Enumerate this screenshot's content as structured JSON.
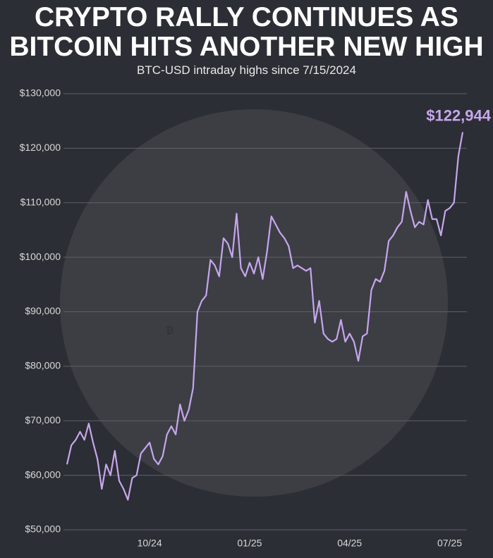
{
  "chart_data": {
    "type": "line",
    "title": "CRYPTO RALLY CONTINUES AS BITCOIN HITS ANOTHER NEW HIGH",
    "subtitle": "BTC-USD intraday highs since 7/15/2024",
    "categories": [
      null,
      null,
      null,
      null,
      null,
      null,
      null,
      null,
      null,
      null,
      null,
      null,
      null,
      null,
      null,
      null,
      null,
      null,
      null,
      "10/24",
      null,
      null,
      null,
      null,
      null,
      null,
      null,
      null,
      null,
      null,
      null,
      null,
      null,
      null,
      null,
      null,
      null,
      null,
      null,
      null,
      null,
      null,
      "01/25",
      null,
      null,
      null,
      null,
      null,
      null,
      null,
      null,
      null,
      null,
      null,
      null,
      null,
      null,
      null,
      null,
      null,
      null,
      null,
      null,
      null,
      null,
      "04/25",
      null,
      null,
      null,
      null,
      null,
      null,
      null,
      null,
      null,
      null,
      null,
      null,
      null,
      null,
      null,
      null,
      null,
      null,
      null,
      null,
      null,
      null,
      "07/25",
      null,
      null,
      null
    ],
    "series": [
      {
        "name": "BTC-USD",
        "color": "#c7a6ee",
        "values": [
          62000,
          65500,
          66500,
          68000,
          66500,
          69500,
          66000,
          63000,
          57500,
          62000,
          60000,
          64500,
          59000,
          57500,
          55500,
          59500,
          60000,
          64000,
          65000,
          66000,
          63000,
          62000,
          63500,
          67500,
          69000,
          67500,
          73000,
          70000,
          72000,
          76000,
          90000,
          92000,
          93000,
          99500,
          98500,
          96500,
          103500,
          102500,
          100000,
          108000,
          98000,
          96500,
          99000,
          97000,
          100000,
          96000,
          101000,
          107500,
          106000,
          104500,
          103500,
          102000,
          98000,
          98500,
          98000,
          97500,
          98000,
          88000,
          92000,
          86000,
          85000,
          84500,
          85000,
          88500,
          84500,
          86000,
          84500,
          81000,
          85500,
          86000,
          94000,
          96000,
          95500,
          97500,
          103000,
          104000,
          105500,
          106500,
          112000,
          108500,
          105500,
          106500,
          106000,
          110500,
          107000,
          107000,
          104000,
          108500,
          109000,
          110000,
          118500,
          122944
        ],
        "value_labels": [
          null,
          null,
          null,
          null,
          null,
          null,
          null,
          null,
          null,
          null,
          null,
          null,
          null,
          null,
          null,
          null,
          null,
          null,
          null,
          null,
          null,
          null,
          null,
          null,
          null,
          null,
          null,
          null,
          null,
          null,
          null,
          null,
          null,
          null,
          null,
          null,
          null,
          null,
          null,
          null,
          null,
          null,
          null,
          null,
          null,
          null,
          null,
          null,
          null,
          null,
          null,
          null,
          null,
          null,
          null,
          null,
          null,
          null,
          null,
          null,
          null,
          null,
          null,
          null,
          null,
          null,
          null,
          null,
          null,
          null,
          null,
          null,
          null,
          null,
          null,
          null,
          null,
          null,
          null,
          null,
          null,
          null,
          null,
          null,
          null,
          null,
          null,
          null,
          null,
          null,
          null,
          "$122,944"
        ]
      }
    ],
    "ylim": [
      50000,
      130000
    ],
    "yticks": [
      {
        "value": 50000,
        "label": "$50,000"
      },
      {
        "value": 60000,
        "label": "$60,000"
      },
      {
        "value": 70000,
        "label": "$70,000"
      },
      {
        "value": 80000,
        "label": "$80,000"
      },
      {
        "value": 90000,
        "label": "$90,000"
      },
      {
        "value": 100000,
        "label": "$100,000"
      },
      {
        "value": 110000,
        "label": "$110,000"
      },
      {
        "value": 120000,
        "label": "$120,000"
      },
      {
        "value": 130000,
        "label": "$130,000"
      }
    ],
    "grid": true
  }
}
